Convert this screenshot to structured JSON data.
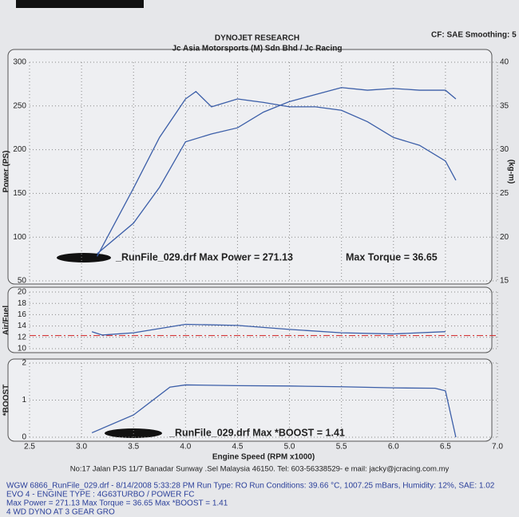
{
  "header": {
    "title": "DYNOJET RESEARCH",
    "subtitle": "Jc Asia Motorsports (M) Sdn Bhd / Jc Racing",
    "settings": "CF: SAE  Smoothing: 5"
  },
  "chart_data": [
    {
      "type": "line",
      "ylabel": "Power (PS)",
      "y2label": "(kg-m)",
      "xlim": [
        2.5,
        7.0
      ],
      "xticks": [
        2.5,
        3,
        3.5,
        4,
        4.5,
        5,
        5.5,
        6,
        6.5,
        7
      ],
      "ylim": [
        50,
        300
      ],
      "yticks": [
        50,
        100,
        150,
        200,
        250,
        300
      ],
      "y2lim": [
        15,
        40
      ],
      "y2ticks": [
        15,
        20,
        25,
        30,
        35,
        40
      ],
      "grid": true,
      "annotations": [
        "_RunFile_029.drf Max Power = 271.13",
        "Max Torque = 36.65"
      ],
      "series": [
        {
          "color": "#3b5ea8",
          "x": [
            3.15,
            3.5,
            3.75,
            4.0,
            4.25,
            4.5,
            4.75,
            5.0,
            5.25,
            5.5,
            5.75,
            6.0,
            6.25,
            6.5,
            6.6
          ],
          "values": [
            81,
            116,
            157,
            209,
            218,
            225,
            243,
            255,
            263,
            271,
            268,
            270,
            268,
            268,
            258
          ]
        },
        {
          "color": "#3b5ea8",
          "axis": "y2",
          "x": [
            3.15,
            3.5,
            3.75,
            4.0,
            4.1,
            4.25,
            4.5,
            4.75,
            5.0,
            5.25,
            5.5,
            5.75,
            6.0,
            6.25,
            6.5,
            6.6
          ],
          "values": [
            17.8,
            25.6,
            31.4,
            35.8,
            36.65,
            34.9,
            35.8,
            35.4,
            34.9,
            34.9,
            34.5,
            33.2,
            31.4,
            30.5,
            28.7,
            26.5
          ]
        }
      ]
    },
    {
      "type": "line",
      "ylabel": "Air/Fuel",
      "xlim": [
        2.5,
        7.0
      ],
      "xticks": [
        2.5,
        3,
        3.5,
        4,
        4.5,
        5,
        5.5,
        6,
        6.5,
        7
      ],
      "ylim": [
        10,
        20
      ],
      "yticks": [
        10,
        12,
        14,
        16,
        18,
        20
      ],
      "grid": true,
      "reference": 12.3,
      "series": [
        {
          "color": "#3b5ea8",
          "x": [
            3.1,
            3.2,
            3.5,
            4.0,
            4.5,
            5.0,
            5.5,
            6.0,
            6.5
          ],
          "values": [
            13.0,
            12.4,
            12.8,
            14.3,
            14.1,
            13.4,
            12.8,
            12.6,
            13.0
          ]
        }
      ]
    },
    {
      "type": "line",
      "ylabel": "*BOOST",
      "xlabel": "Engine Speed (RPM x1000)",
      "xlim": [
        2.5,
        7.0
      ],
      "xticks": [
        2.5,
        {
          "value": 3,
          "label": "3.0"
        },
        3.5,
        {
          "value": 4,
          "label": "4.0"
        },
        4.5,
        {
          "value": 5,
          "label": "5.0"
        },
        5.5,
        {
          "value": 6,
          "label": "6.0"
        },
        6.5,
        {
          "value": 7,
          "label": "7.0"
        }
      ],
      "ylim": [
        0,
        2
      ],
      "yticks": [
        0,
        1,
        2
      ],
      "grid": true,
      "annotations": [
        "_RunFile_029.drf Max *BOOST = 1.41"
      ],
      "series": [
        {
          "color": "#3b5ea8",
          "x": [
            3.1,
            3.5,
            3.85,
            4.0,
            4.5,
            5.0,
            5.5,
            6.0,
            6.4,
            6.5,
            6.6
          ],
          "values": [
            0.12,
            0.6,
            1.35,
            1.41,
            1.39,
            1.38,
            1.36,
            1.33,
            1.32,
            1.25,
            0
          ]
        }
      ]
    }
  ],
  "footer": {
    "address": "No:17 Jalan PJS 11/7 Banadar Sunway .Sel Malaysia 46150. Tel: 603-56338529- e mail: jacky@jcracing.com.my",
    "lines": [
      "WGW 6866_RunFile_029.drf - 8/14/2008 5:33:28 PM  Run Type: RO  Run Conditions: 39.66 °C, 1007.25 mBars,  Humidity:  12%, SAE: 1.02",
      "EVO 4 - ENGINE TYPE :  4G63TURBO / POWER FC",
      "Max Power = 271.13  Max Torque = 36.65  Max *BOOST = 1.41",
      "4 WD DYNO AT 3 GEAR GRO"
    ]
  }
}
